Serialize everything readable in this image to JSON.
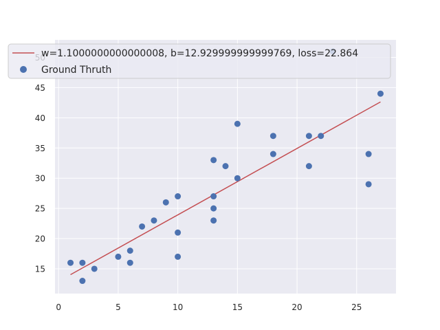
{
  "chart_data": {
    "type": "scatter",
    "title": "",
    "xlabel": "",
    "ylabel": "",
    "xlim": [
      -0.3,
      28.3
    ],
    "ylim": [
      10.9,
      52.9
    ],
    "x_ticks": [
      0,
      5,
      10,
      15,
      20,
      25
    ],
    "y_ticks": [
      15,
      20,
      25,
      30,
      35,
      40,
      45,
      50
    ],
    "grid": true,
    "legend_position": "upper-left",
    "background_color": "#eaeaf2",
    "series": [
      {
        "name": "w=1.1000000000000008, b=12.929999999999769, loss=22.864",
        "kind": "line",
        "color": "#c44e52",
        "x": [
          1,
          27
        ],
        "y": [
          14.03,
          42.63
        ]
      },
      {
        "name": "Ground Thruth",
        "kind": "scatter",
        "color": "#4c72b0",
        "x": [
          1,
          2,
          2,
          3,
          5,
          6,
          6,
          7,
          8,
          9,
          10,
          10,
          10,
          13,
          13,
          13,
          13,
          14,
          15,
          15,
          18,
          18,
          21,
          21,
          22,
          23,
          26,
          26,
          27
        ],
        "y": [
          16,
          16,
          13,
          15,
          17,
          18,
          16,
          22,
          23,
          26,
          27,
          21,
          17,
          33,
          27,
          25,
          23,
          32,
          39,
          30,
          37,
          34,
          37,
          32,
          37,
          51,
          34,
          29,
          44
        ]
      }
    ]
  }
}
